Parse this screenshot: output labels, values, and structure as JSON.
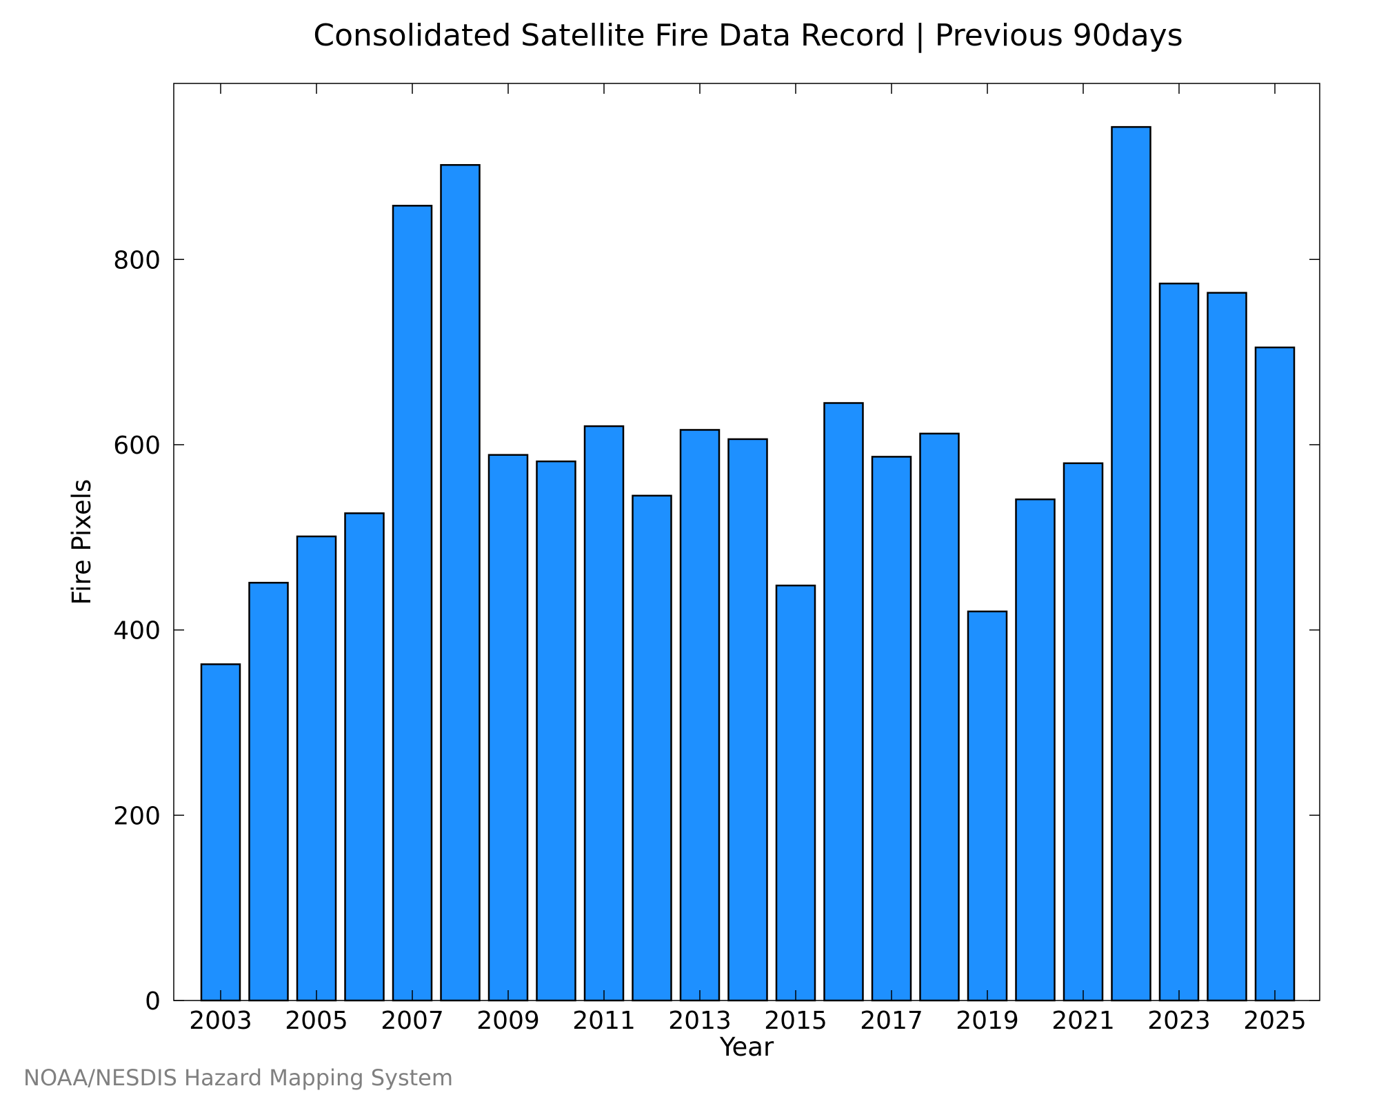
{
  "chart_data": {
    "type": "bar",
    "title": "Consolidated Satellite Fire Data Record | Previous 90days",
    "xlabel": "Year",
    "ylabel": "Fire Pixels",
    "ylim": [
      0,
      990
    ],
    "yticks": [
      0,
      200,
      400,
      600,
      800
    ],
    "xtick_labels": [
      "2003",
      "2005",
      "2007",
      "2009",
      "2011",
      "2013",
      "2015",
      "2017",
      "2019",
      "2021",
      "2023",
      "2025"
    ],
    "categories": [
      "2003",
      "2004",
      "2005",
      "2006",
      "2007",
      "2008",
      "2009",
      "2010",
      "2011",
      "2012",
      "2013",
      "2014",
      "2015",
      "2016",
      "2017",
      "2018",
      "2019",
      "2020",
      "2021",
      "2022",
      "2023",
      "2024",
      "2025"
    ],
    "values": [
      363,
      451,
      501,
      526,
      858,
      902,
      589,
      582,
      620,
      545,
      616,
      606,
      448,
      645,
      587,
      612,
      420,
      541,
      580,
      943,
      774,
      764,
      705
    ],
    "bar_color": "#1e90ff",
    "bar_edge_color": "#000000",
    "grid": false,
    "legend": "none"
  },
  "footer": {
    "credit": "NOAA/NESDIS Hazard Mapping System",
    "credit_color": "#808080"
  }
}
